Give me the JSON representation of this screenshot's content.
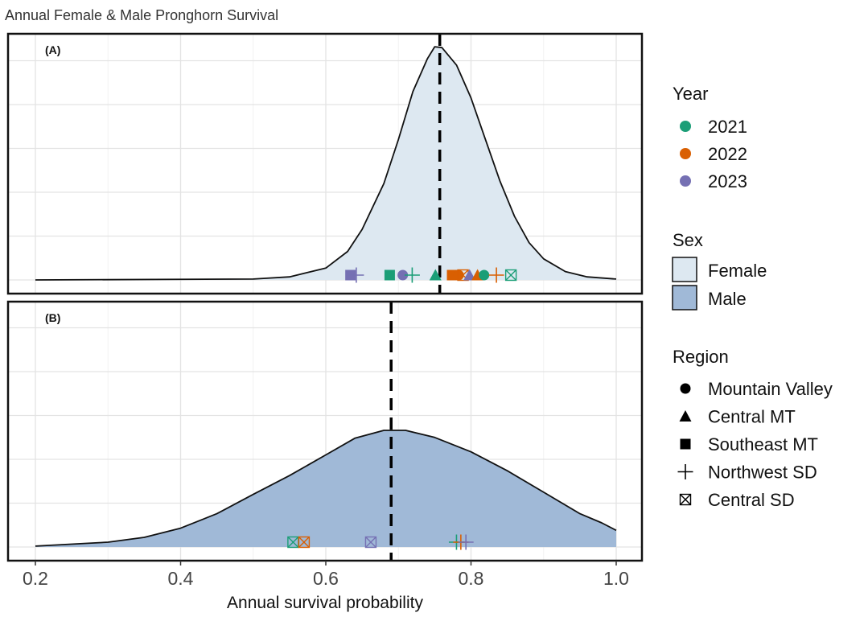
{
  "chart_data": {
    "type": "area",
    "title": "Annual Female & Male Pronghorn Survival",
    "xlabel": "Annual survival probability",
    "ylabel": "",
    "xlim": [
      0.162,
      1.035
    ],
    "x_ticks": [
      "0.2",
      "0.4",
      "0.6",
      "0.8",
      "1.0"
    ],
    "x_tick_values": [
      0.2,
      0.4,
      0.6,
      0.8,
      1.0
    ],
    "x_minor_values": [
      0.3,
      0.5,
      0.7,
      0.9
    ],
    "grid": true,
    "legend_placement": "right",
    "colors": {
      "2021": "#1b9e77",
      "2022": "#d95f02",
      "2023": "#7570b3",
      "Female": "#dde8f1",
      "Male": "#a0b9d7"
    },
    "legend": {
      "year_title": "Year",
      "years": [
        "2021",
        "2022",
        "2023"
      ],
      "sex_title": "Sex",
      "sexes": [
        "Female",
        "Male"
      ],
      "region_title": "Region",
      "regions": [
        "Mountain Valley",
        "Central MT",
        "Southeast MT",
        "Northwest SD",
        "Central SD"
      ],
      "region_shapes": [
        "circle",
        "triangle",
        "square",
        "plus",
        "crossed-box"
      ]
    },
    "panels": [
      {
        "label": "(A)",
        "sex": "Female",
        "mean_line": 0.757,
        "density": {
          "x": [
            0.2,
            0.5,
            0.55,
            0.6,
            0.63,
            0.65,
            0.68,
            0.7,
            0.72,
            0.74,
            0.75,
            0.76,
            0.78,
            0.8,
            0.82,
            0.84,
            0.86,
            0.88,
            0.9,
            0.93,
            0.96,
            1.0
          ],
          "y": [
            0,
            0.02,
            0.07,
            0.27,
            0.65,
            1.15,
            2.2,
            3.2,
            4.3,
            5.05,
            5.32,
            5.3,
            4.9,
            4.15,
            3.2,
            2.25,
            1.45,
            0.85,
            0.48,
            0.19,
            0.07,
            0.02
          ]
        },
        "points": [
          {
            "year": "2023",
            "region": "Southeast MT",
            "x": 0.634
          },
          {
            "year": "2023",
            "region": "Northwest SD",
            "x": 0.642
          },
          {
            "year": "2021",
            "region": "Southeast MT",
            "x": 0.688
          },
          {
            "year": "2023",
            "region": "Mountain Valley",
            "x": 0.706
          },
          {
            "year": "2021",
            "region": "Northwest SD",
            "x": 0.719
          },
          {
            "year": "2021",
            "region": "Central MT",
            "x": 0.751
          },
          {
            "year": "2022",
            "region": "Southeast MT",
            "x": 0.774
          },
          {
            "year": "2022",
            "region": "Mountain Valley",
            "x": 0.783
          },
          {
            "year": "2022",
            "region": "Central SD",
            "x": 0.789
          },
          {
            "year": "2023",
            "region": "Central MT",
            "x": 0.798
          },
          {
            "year": "2022",
            "region": "Central MT",
            "x": 0.809
          },
          {
            "year": "2021",
            "region": "Mountain Valley",
            "x": 0.818
          },
          {
            "year": "2022",
            "region": "Northwest SD",
            "x": 0.835
          },
          {
            "year": "2021",
            "region": "Central SD",
            "x": 0.855
          }
        ]
      },
      {
        "label": "(B)",
        "sex": "Male",
        "mean_line": 0.69,
        "density": {
          "x": [
            0.2,
            0.3,
            0.35,
            0.4,
            0.45,
            0.5,
            0.55,
            0.6,
            0.64,
            0.68,
            0.71,
            0.75,
            0.8,
            0.85,
            0.9,
            0.95,
            0.98,
            1.0
          ],
          "y": [
            0.02,
            0.11,
            0.22,
            0.43,
            0.76,
            1.2,
            1.63,
            2.1,
            2.48,
            2.66,
            2.66,
            2.5,
            2.17,
            1.74,
            1.25,
            0.76,
            0.55,
            0.38
          ]
        },
        "points": [
          {
            "year": "2021",
            "region": "Central SD",
            "x": 0.555
          },
          {
            "year": "2022",
            "region": "Central SD",
            "x": 0.57
          },
          {
            "year": "2023",
            "region": "Central SD",
            "x": 0.662
          },
          {
            "year": "2021",
            "region": "Northwest SD",
            "x": 0.78
          },
          {
            "year": "2022",
            "region": "Northwest SD",
            "x": 0.786
          },
          {
            "year": "2023",
            "region": "Northwest SD",
            "x": 0.793
          }
        ]
      }
    ]
  }
}
